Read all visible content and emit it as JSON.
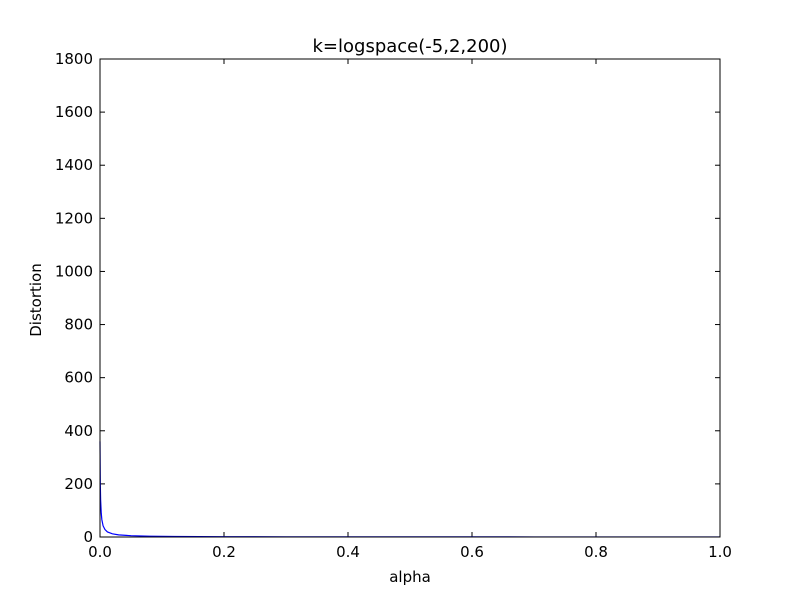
{
  "chart_data": {
    "type": "line",
    "title": "k=logspace(-5,2,200)",
    "xlabel": "alpha",
    "ylabel": "Distortion",
    "xlim": [
      0.0,
      1.0
    ],
    "ylim": [
      0,
      1800
    ],
    "xticks": [
      "0.0",
      "0.2",
      "0.4",
      "0.6",
      "0.8",
      "1.0"
    ],
    "yticks": [
      "0",
      "200",
      "400",
      "600",
      "800",
      "1000",
      "1200",
      "1400",
      "1600",
      "1800"
    ],
    "grid": false,
    "legend": "none",
    "series": [
      {
        "color": "#0000ff",
        "x": [
          0.0,
          0.0005,
          0.001,
          0.002,
          0.003,
          0.005,
          0.008,
          0.012,
          0.02,
          0.03,
          0.05,
          0.08,
          0.12,
          0.2,
          0.3,
          0.5,
          0.7,
          1.0
        ],
        "y": [
          360,
          200,
          140,
          90,
          65,
          42,
          28,
          19,
          12,
          8,
          5,
          3,
          2,
          1.2,
          0.8,
          0.5,
          0.3,
          0.2
        ]
      }
    ]
  }
}
